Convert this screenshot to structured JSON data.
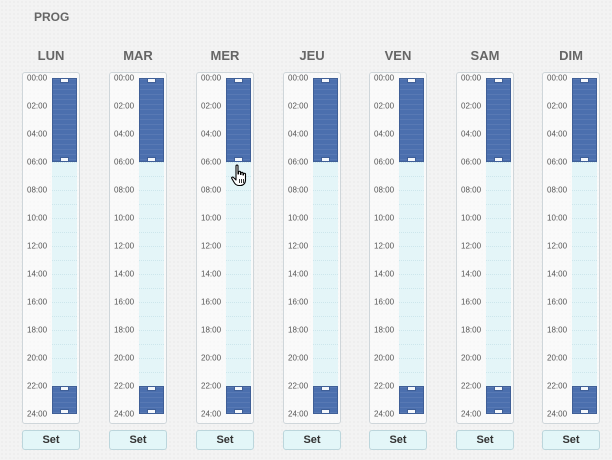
{
  "title": "PROG",
  "hour_labels": [
    "00:00",
    "02:00",
    "04:00",
    "06:00",
    "08:00",
    "10:00",
    "12:00",
    "14:00",
    "16:00",
    "18:00",
    "20:00",
    "22:00",
    "24:00"
  ],
  "days": [
    {
      "label": "LUN",
      "set_label": "Set",
      "blocks": [
        {
          "start": 0,
          "end": 6
        },
        {
          "start": 22,
          "end": 24
        }
      ]
    },
    {
      "label": "MAR",
      "set_label": "Set",
      "blocks": [
        {
          "start": 0,
          "end": 6
        },
        {
          "start": 22,
          "end": 24
        }
      ]
    },
    {
      "label": "MER",
      "set_label": "Set",
      "blocks": [
        {
          "start": 0,
          "end": 6
        },
        {
          "start": 22,
          "end": 24
        }
      ]
    },
    {
      "label": "JEU",
      "set_label": "Set",
      "blocks": [
        {
          "start": 0,
          "end": 6
        },
        {
          "start": 22,
          "end": 24
        }
      ]
    },
    {
      "label": "VEN",
      "set_label": "Set",
      "blocks": [
        {
          "start": 0,
          "end": 6
        },
        {
          "start": 22,
          "end": 24
        }
      ]
    },
    {
      "label": "SAM",
      "set_label": "Set",
      "blocks": [
        {
          "start": 0,
          "end": 6
        },
        {
          "start": 22,
          "end": 24
        }
      ]
    },
    {
      "label": "DIM",
      "set_label": "Set",
      "blocks": [
        {
          "start": 0,
          "end": 6
        },
        {
          "start": 22,
          "end": 24
        }
      ]
    }
  ],
  "colors": {
    "block": "#4b6fae",
    "track": "#e4f5f8",
    "button": "#e3f6f8"
  },
  "cursor": "hand-pointer-icon"
}
